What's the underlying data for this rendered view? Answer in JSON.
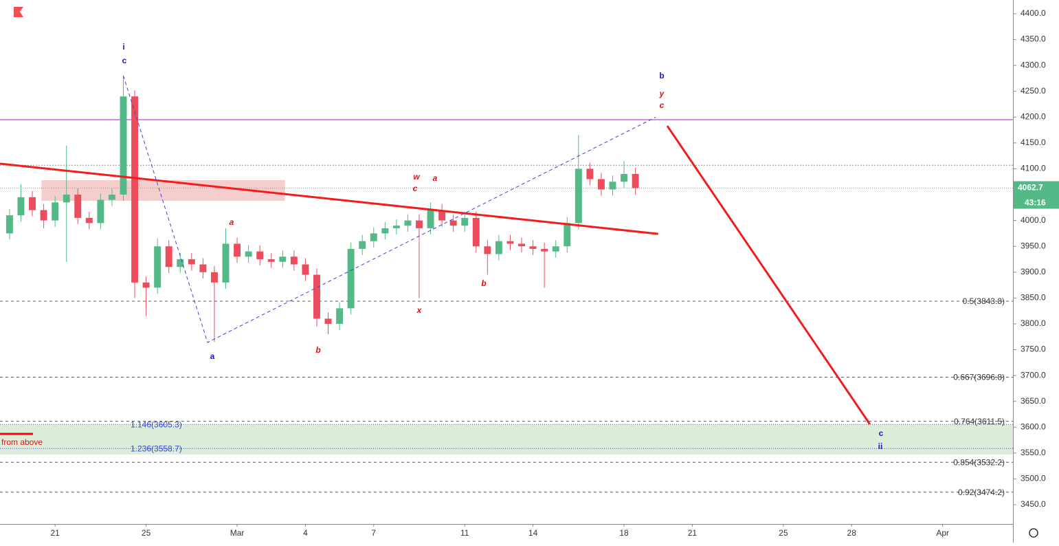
{
  "chart_data": {
    "type": "candlestick",
    "x": [
      19,
      19.5,
      20,
      20.5,
      21,
      21.5,
      22,
      22.5,
      23,
      23.5,
      24,
      24.5,
      25,
      25.5,
      26,
      26.5,
      27,
      27.5,
      28,
      28.5,
      29,
      29.5,
      30,
      30.5,
      31,
      31.5,
      32,
      32.5,
      33,
      33.5,
      34,
      34.5,
      35,
      35.5,
      36,
      36.5,
      37,
      37.5,
      38,
      38.5,
      39,
      39.5,
      40,
      40.5,
      41,
      41.5,
      42,
      42.5,
      43,
      43.5,
      44,
      44.5,
      45,
      45.5,
      46,
      46.5
    ],
    "open": [
      3975,
      4010,
      4045,
      4020,
      4000,
      4035,
      4050,
      4005,
      3995,
      4040,
      4050,
      4240,
      3880,
      3870,
      3950,
      3910,
      3925,
      3915,
      3900,
      3880,
      3955,
      3930,
      3940,
      3925,
      3920,
      3930,
      3915,
      3895,
      3810,
      3800,
      3830,
      3945,
      3960,
      3975,
      3985,
      3990,
      4000,
      3985,
      4020,
      4000,
      3990,
      4005,
      3950,
      3935,
      3960,
      3955,
      3950,
      3945,
      3940,
      3950,
      3995,
      4100,
      4080,
      4060,
      4075,
      4090
    ],
    "high": [
      4022,
      4070,
      4057,
      4032,
      4047,
      4145,
      4062,
      4017,
      4052,
      4062,
      4280,
      4252,
      3892,
      3965,
      3962,
      3937,
      3937,
      3927,
      3912,
      3985,
      3967,
      3952,
      3952,
      3937,
      3942,
      3942,
      3927,
      3907,
      3822,
      3842,
      3957,
      3972,
      3987,
      3997,
      4002,
      4012,
      4012,
      4035,
      4032,
      4012,
      4017,
      4017,
      3962,
      3972,
      3972,
      3967,
      3962,
      3957,
      3962,
      4007,
      4165,
      4112,
      4092,
      4087,
      4115,
      4102
    ],
    "low": [
      3963,
      3998,
      4008,
      3985,
      3988,
      3920,
      3993,
      3983,
      3983,
      4028,
      4038,
      3850,
      3815,
      3858,
      3898,
      3898,
      3903,
      3888,
      3765,
      3868,
      3918,
      3918,
      3913,
      3908,
      3908,
      3903,
      3883,
      3795,
      3780,
      3788,
      3818,
      3933,
      3948,
      3963,
      3973,
      3978,
      3850,
      3973,
      3988,
      3978,
      3978,
      3938,
      3895,
      3923,
      3943,
      3938,
      3933,
      3870,
      3928,
      3938,
      3983,
      4068,
      4048,
      4048,
      4063,
      4050
    ],
    "close": [
      4010,
      4045,
      4020,
      4000,
      4035,
      4050,
      4005,
      3995,
      4040,
      4050,
      4240,
      3880,
      3870,
      3950,
      3910,
      3925,
      3915,
      3900,
      3880,
      3955,
      3930,
      3940,
      3925,
      3920,
      3930,
      3915,
      3895,
      3810,
      3800,
      3830,
      3945,
      3960,
      3975,
      3985,
      3990,
      4000,
      3985,
      4020,
      4000,
      3990,
      4005,
      3950,
      3935,
      3960,
      3955,
      3950,
      3945,
      3940,
      3950,
      3995,
      4100,
      4080,
      4060,
      4075,
      4090,
      4062.7
    ],
    "up_color": "#53b987",
    "down_color": "#eb4d5c",
    "countdown": "43:16",
    "xlim": [
      18.58,
      63.09
    ],
    "ylim": [
      3412.7,
      4426.6
    ],
    "xticks": [
      {
        "value": 21,
        "label": "21"
      },
      {
        "value": 25,
        "label": "25"
      },
      {
        "value": 29,
        "label": "Mar"
      },
      {
        "value": 32,
        "label": "4"
      },
      {
        "value": 35,
        "label": "7"
      },
      {
        "value": 39,
        "label": "11"
      },
      {
        "value": 42,
        "label": "14"
      },
      {
        "value": 46,
        "label": "18"
      },
      {
        "value": 49,
        "label": "21"
      },
      {
        "value": 53,
        "label": "25"
      },
      {
        "value": 56,
        "label": "28"
      },
      {
        "value": 60,
        "label": "Apr"
      }
    ],
    "yticks": [
      {
        "value": 3450,
        "label": "3450.0"
      },
      {
        "value": 3500,
        "label": "3500.0"
      },
      {
        "value": 3550,
        "label": "3550.0"
      },
      {
        "value": 3600,
        "label": "3600.0"
      },
      {
        "value": 3650,
        "label": "3650.0"
      },
      {
        "value": 3700,
        "label": "3700.0"
      },
      {
        "value": 3750,
        "label": "3750.0"
      },
      {
        "value": 3800,
        "label": "3800.0"
      },
      {
        "value": 3850,
        "label": "3850.0"
      },
      {
        "value": 3900,
        "label": "3900.0"
      },
      {
        "value": 3950,
        "label": "3950.0"
      },
      {
        "value": 4000,
        "label": "4000.0"
      },
      {
        "value": 4050,
        "label": "4050.0"
      },
      {
        "value": 4100,
        "label": "4100.0"
      },
      {
        "value": 4150,
        "label": "4150.0"
      },
      {
        "value": 4200,
        "label": "4200.0"
      },
      {
        "value": 4250,
        "label": "4250.0"
      },
      {
        "value": 4300,
        "label": "4300.0"
      },
      {
        "value": 4350,
        "label": "4350.0"
      },
      {
        "value": 4400,
        "label": "4400.0"
      }
    ],
    "fib_levels": [
      {
        "value": 3843.8,
        "label": "0.5(3843.8)"
      },
      {
        "value": 3696.8,
        "label": "0.667(3696.8)"
      },
      {
        "value": 3611.5,
        "label": "0.764(3611.5)"
      },
      {
        "value": 3532.2,
        "label": "0.854(3532.2)"
      },
      {
        "value": 3474.2,
        "label": "0.92(3474.2)"
      }
    ],
    "ext_levels": [
      {
        "value": 3605.3,
        "label": "1.146(3605.3)"
      },
      {
        "value": 3558.7,
        "label": "1.236(3558.7)"
      }
    ],
    "horizontal_lines": [
      {
        "value": 4195,
        "color": "#9c27b0",
        "style": "solid"
      },
      {
        "value": 4107,
        "color": "#888888",
        "style": "dotted"
      }
    ],
    "zones": [
      {
        "x": [
          18.58,
          63.09
        ],
        "y": [
          3547,
          3605
        ],
        "color": "#d6ebd2"
      },
      {
        "x": [
          20.4,
          31.1
        ],
        "y": [
          4038,
          4078
        ],
        "color": "#f4c4c4"
      }
    ],
    "trend_lines": [
      {
        "points": [
          [
            18.58,
            4110
          ],
          [
            47.5,
            3974
          ]
        ],
        "color": "#f21c1c",
        "width": 3,
        "style": "solid"
      },
      {
        "points": [
          [
            24.0,
            4280
          ],
          [
            27.7,
            3764
          ],
          [
            47.4,
            4200
          ]
        ],
        "color": "#3344dd",
        "width": 1,
        "style": "dashed"
      },
      {
        "points": [
          [
            47.9,
            4183
          ],
          [
            56.8,
            3606
          ]
        ],
        "color": "#f21c1c",
        "width": 3,
        "style": "solid"
      }
    ],
    "annotations": [
      {
        "text": "i",
        "color": "#1515c8",
        "italic": false
      },
      {
        "text": "c",
        "color": "#1515c8",
        "italic": false
      },
      {
        "text": "a",
        "color": "#1515c8",
        "italic": false
      },
      {
        "text": "b",
        "color": "#1515c8",
        "italic": false
      },
      {
        "text": "c",
        "color": "#1515c8",
        "italic": false
      },
      {
        "text": "ii",
        "color": "#1515c8",
        "italic": false
      },
      {
        "text": "a",
        "color": "#e01010",
        "italic": true
      },
      {
        "text": "b",
        "color": "#e01010",
        "italic": true
      },
      {
        "text": "w",
        "color": "#e01010",
        "italic": true
      },
      {
        "text": "c",
        "color": "#e01010",
        "italic": true
      },
      {
        "text": "a",
        "color": "#e01010",
        "italic": true
      },
      {
        "text": "x",
        "color": "#e01010",
        "italic": true
      },
      {
        "text": "b",
        "color": "#e01010",
        "italic": true
      },
      {
        "text": "y",
        "color": "#e01010",
        "italic": true
      },
      {
        "text": "c",
        "color": "#e01010",
        "italic": true
      }
    ],
    "note": "from above"
  }
}
